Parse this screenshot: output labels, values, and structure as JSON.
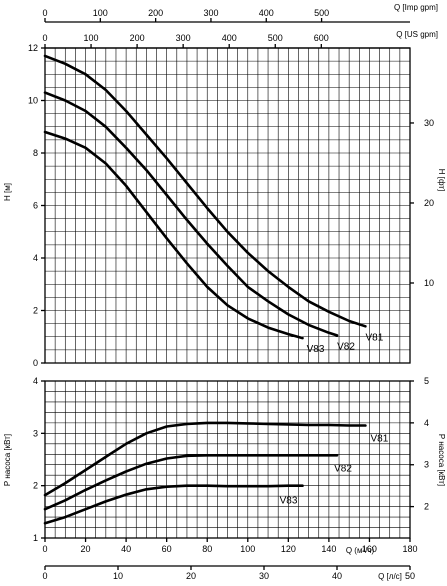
{
  "chart_data": [
    {
      "type": "line",
      "panel": "head",
      "ylabel": "H [м]",
      "ylabel_right": "H [фт]",
      "xlabel_top_1": "Q [Imp gpm]",
      "xlabel_top_2": "Q [US gpm]",
      "xlim_m3h": [
        0,
        180
      ],
      "ylim": [
        0,
        12
      ],
      "yticks": [
        "0",
        "2",
        "4",
        "6",
        "8",
        "10",
        "12"
      ],
      "yticks_right": [
        "10",
        "20",
        "30"
      ],
      "xticks_imp_gpm": [
        "0",
        "100",
        "200",
        "300",
        "400",
        "500"
      ],
      "xticks_us_gpm": [
        "0",
        "100",
        "200",
        "300",
        "400",
        "500",
        "600"
      ],
      "series": [
        {
          "name": "V81",
          "x": [
            0,
            10,
            20,
            30,
            40,
            50,
            60,
            70,
            80,
            90,
            100,
            110,
            120,
            130,
            140,
            150,
            158
          ],
          "y": [
            11.7,
            11.4,
            11.0,
            10.4,
            9.6,
            8.7,
            7.8,
            6.85,
            5.9,
            5.0,
            4.2,
            3.5,
            2.9,
            2.35,
            1.95,
            1.6,
            1.4
          ]
        },
        {
          "name": "V82",
          "x": [
            0,
            10,
            20,
            30,
            40,
            50,
            60,
            70,
            80,
            90,
            100,
            110,
            120,
            130,
            140,
            144
          ],
          "y": [
            10.3,
            10.0,
            9.6,
            9.0,
            8.2,
            7.35,
            6.4,
            5.45,
            4.55,
            3.7,
            2.9,
            2.35,
            1.85,
            1.45,
            1.15,
            1.05
          ]
        },
        {
          "name": "V83",
          "x": [
            0,
            10,
            20,
            30,
            40,
            50,
            60,
            70,
            80,
            90,
            100,
            110,
            120,
            127
          ],
          "y": [
            8.8,
            8.55,
            8.2,
            7.6,
            6.75,
            5.75,
            4.75,
            3.8,
            2.9,
            2.2,
            1.7,
            1.35,
            1.1,
            0.95
          ]
        }
      ]
    },
    {
      "type": "line",
      "panel": "power",
      "ylabel": "P насоса [кВт]",
      "ylabel_right": "P насоса [кВт]",
      "xlabel_m3h": "Q (м³/ч)",
      "xlabel_ls": "Q [л/с]",
      "xlim_m3h": [
        0,
        180
      ],
      "ylim": [
        1,
        4
      ],
      "yticks": [
        "1",
        "2",
        "3",
        "4"
      ],
      "yticks_right": [
        "2",
        "3",
        "4",
        "5"
      ],
      "xticks_m3h": [
        "0",
        "20",
        "40",
        "60",
        "80",
        "100",
        "120",
        "140",
        "160",
        "180"
      ],
      "xticks_ls": [
        "0",
        "10",
        "20",
        "30",
        "40",
        "50"
      ],
      "series": [
        {
          "name": "V81",
          "x": [
            0,
            10,
            20,
            30,
            40,
            50,
            60,
            70,
            80,
            90,
            100,
            110,
            120,
            130,
            140,
            150,
            158
          ],
          "y": [
            1.82,
            2.05,
            2.3,
            2.55,
            2.8,
            3.0,
            3.13,
            3.18,
            3.2,
            3.2,
            3.19,
            3.18,
            3.17,
            3.16,
            3.16,
            3.15,
            3.15
          ]
        },
        {
          "name": "V82",
          "x": [
            0,
            10,
            20,
            30,
            40,
            50,
            60,
            70,
            80,
            90,
            100,
            110,
            120,
            130,
            140,
            144
          ],
          "y": [
            1.55,
            1.72,
            1.92,
            2.1,
            2.27,
            2.42,
            2.52,
            2.57,
            2.58,
            2.58,
            2.58,
            2.58,
            2.58,
            2.58,
            2.58,
            2.58
          ]
        },
        {
          "name": "V83",
          "x": [
            0,
            10,
            20,
            30,
            40,
            50,
            60,
            70,
            80,
            90,
            100,
            110,
            120,
            127
          ],
          "y": [
            1.28,
            1.4,
            1.55,
            1.7,
            1.83,
            1.93,
            1.98,
            2.0,
            2.0,
            1.99,
            1.99,
            1.99,
            2.0,
            2.0
          ]
        }
      ]
    }
  ]
}
